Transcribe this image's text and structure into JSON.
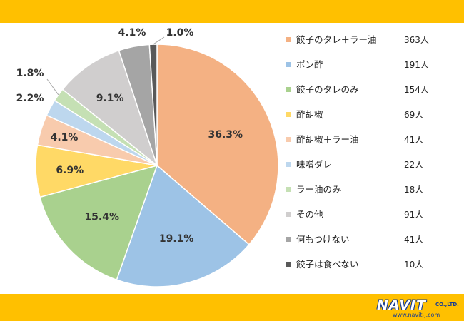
{
  "chart_data": {
    "type": "pie",
    "title": "",
    "legend_position": "right",
    "slices": [
      {
        "label": "餃子のタレ＋ラー油",
        "count": "363人",
        "percent": 36.3,
        "percent_label": "36.3%",
        "color": "#f4b183"
      },
      {
        "label": "ポン酢",
        "count": "191人",
        "percent": 19.1,
        "percent_label": "19.1%",
        "color": "#9dc3e6"
      },
      {
        "label": "餃子のタレのみ",
        "count": "154人",
        "percent": 15.4,
        "percent_label": "15.4%",
        "color": "#a9d18e"
      },
      {
        "label": "酢胡椒",
        "count": "69人",
        "percent": 6.9,
        "percent_label": "6.9%",
        "color": "#ffd966"
      },
      {
        "label": "酢胡椒＋ラー油",
        "count": "41人",
        "percent": 4.1,
        "percent_label": "4.1%",
        "color": "#f8cbad"
      },
      {
        "label": "味噌ダレ",
        "count": "22人",
        "percent": 2.2,
        "percent_label": "2.2%",
        "color": "#bdd7ee"
      },
      {
        "label": "ラー油のみ",
        "count": "18人",
        "percent": 1.8,
        "percent_label": "1.8%",
        "color": "#c5e0b4"
      },
      {
        "label": "その他",
        "count": "91人",
        "percent": 9.1,
        "percent_label": "9.1%",
        "color": "#d0cece"
      },
      {
        "label": "何もつけない",
        "count": "41人",
        "percent": 4.1,
        "percent_label": "4.1%",
        "color": "#a5a5a5"
      },
      {
        "label": "餃子は食べない",
        "count": "10人",
        "percent": 1.0,
        "percent_label": "1.0%",
        "color": "#595959"
      }
    ]
  },
  "logo": {
    "name": "NAVIT",
    "suffix": "CO.,LTD.",
    "url": "www.navit-j.com"
  }
}
